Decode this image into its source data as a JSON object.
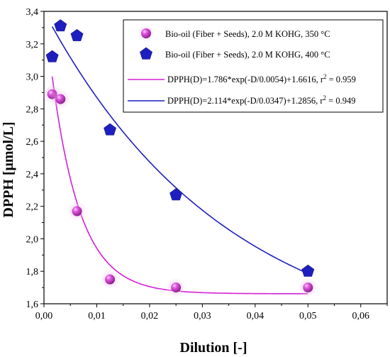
{
  "chart_data": {
    "type": "scatter",
    "xlabel": "Dilution [-]",
    "ylabel": "DPPH [μmol/L]",
    "xlim": [
      0,
      0.065
    ],
    "ylim": [
      1.6,
      3.4
    ],
    "grid": false,
    "legend_position": "top-right",
    "x_tick_labels": [
      "0,00",
      "0,01",
      "0,02",
      "0,03",
      "0,04",
      "0,05",
      "0,06"
    ],
    "y_tick_labels": [
      "1,6",
      "1,8",
      "2,0",
      "2,2",
      "2,4",
      "2,6",
      "2,8",
      "3,0",
      "3,2",
      "3,4"
    ],
    "series": [
      {
        "name": "Bio-oil (Fiber + Seeds), 2.0 M KOHG, 350 °C",
        "marker": "sphere",
        "color": "#cc33cc",
        "x": [
          0.0015625,
          0.003125,
          0.00625,
          0.0125,
          0.025,
          0.05
        ],
        "y": [
          2.89,
          2.86,
          2.17,
          1.75,
          1.7,
          1.7
        ]
      },
      {
        "name": "Bio-oil (Fiber + Seeds), 2.0 M KOHG, 400 °C",
        "marker": "pentagon",
        "color": "#1f1fbf",
        "x": [
          0.0015625,
          0.003125,
          0.00625,
          0.0125,
          0.025,
          0.05
        ],
        "y": [
          3.12,
          3.31,
          3.25,
          2.67,
          2.27,
          1.8
        ]
      }
    ],
    "fits": [
      {
        "name": "DPPH(D)=1.786*exp(-D/0.0054)+1.6616, r² = 0.959",
        "label_main": "DPPH(D)=1.786*exp(-D/0.0054)+1.6616, r",
        "label_sup": "2",
        "label_tail": " = 0.959",
        "color": "#d61fd6",
        "a": 1.786,
        "t": 0.0054,
        "c": 1.6616,
        "x_range": [
          0.0015625,
          0.05
        ]
      },
      {
        "name": "DPPH(D)=2.114*exp(-D/0.0347)+1.2856, r² = 0.949",
        "label_main": "DPPH(D)=2.114*exp(-D/0.0347)+1.2856, r",
        "label_sup": "2",
        "label_tail": " = 0.949",
        "color": "#1f1fbf",
        "a": 2.114,
        "t": 0.0347,
        "c": 1.2856,
        "x_range": [
          0.0015625,
          0.05
        ]
      }
    ]
  }
}
